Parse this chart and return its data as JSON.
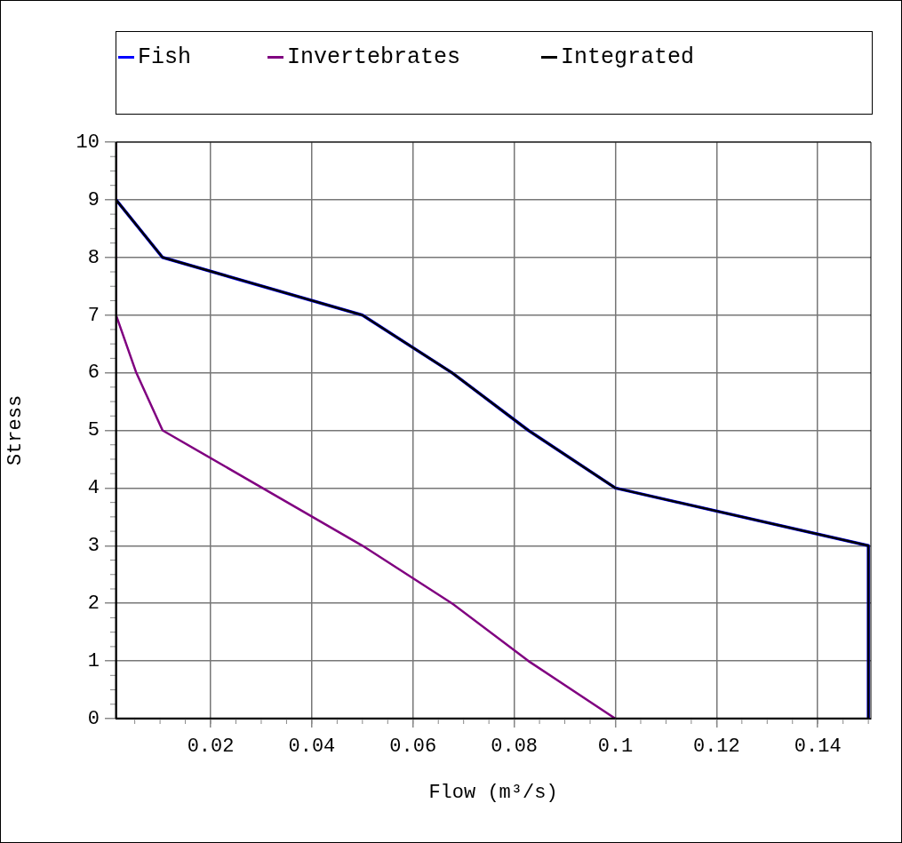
{
  "chart_data": {
    "type": "line",
    "xlabel": "Flow (m³/s)",
    "ylabel": "Stress",
    "xlim": [
      0.0012,
      0.1505
    ],
    "xticks": [
      0.02,
      0.04,
      0.06,
      0.08,
      0.1,
      0.12,
      0.14
    ],
    "ylim": [
      0,
      10
    ],
    "yticks": [
      0,
      1,
      2,
      3,
      4,
      5,
      6,
      7,
      8,
      9,
      10
    ],
    "grid": true,
    "legend": "top",
    "marker": "none",
    "series": [
      {
        "name": "Fish",
        "color": "#0000ff",
        "x": [
          0.0013,
          0.0105,
          0.05,
          0.0677,
          0.0828,
          0.1,
          0.15,
          0.15
        ],
        "values": [
          9,
          8,
          7,
          6,
          5,
          4,
          3,
          0
        ]
      },
      {
        "name": "Invertebrates",
        "color": "#800080",
        "x": [
          0.0013,
          0.0013,
          0.0053,
          0.0105,
          0.05,
          0.0677,
          0.0828,
          0.1
        ],
        "values": [
          10,
          7,
          6,
          5,
          3,
          2,
          1,
          0
        ]
      },
      {
        "name": "Integrated",
        "color": "#000000",
        "x": [
          0.0013,
          0.0105,
          0.05,
          0.0677,
          0.0828,
          0.1,
          0.15,
          0.15,
          0.0013,
          0.0013
        ],
        "values": [
          9,
          8,
          7,
          6,
          5,
          4,
          3,
          0,
          0,
          10
        ]
      }
    ]
  }
}
